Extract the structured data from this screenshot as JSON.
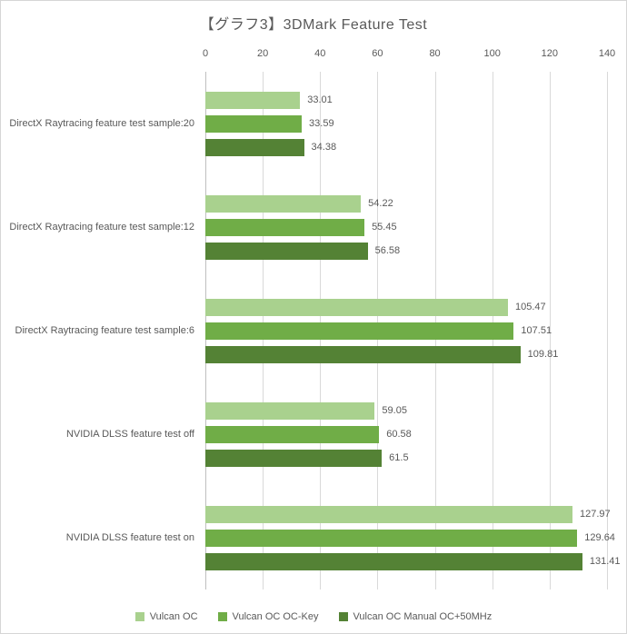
{
  "title": "【グラフ3】3DMark Feature Test",
  "chart_data": {
    "type": "bar",
    "orientation": "horizontal",
    "title": "【グラフ3】3DMark Feature Test",
    "categories": [
      "DirectX Raytracing feature test sample:20",
      "DirectX Raytracing feature test sample:12",
      "DirectX Raytracing feature test sample:6",
      "NVIDIA DLSS feature test off",
      "NVIDIA DLSS feature test on"
    ],
    "series": [
      {
        "name": "Vulcan OC",
        "color": "#a9d18e",
        "values": [
          33.01,
          54.22,
          105.47,
          59.05,
          127.97
        ],
        "labels": [
          "33.01",
          "54.22",
          "105.47",
          "59.05",
          "127.97"
        ]
      },
      {
        "name": "Vulcan OC OC-Key",
        "color": "#70ad47",
        "values": [
          33.59,
          55.45,
          107.51,
          60.58,
          129.64
        ],
        "labels": [
          "33.59",
          "55.45",
          "107.51",
          "60.58",
          "129.64"
        ]
      },
      {
        "name": "Vulcan OC Manual OC+50MHz",
        "color": "#548235",
        "values": [
          34.38,
          56.58,
          109.81,
          61.5,
          131.41
        ],
        "labels": [
          "34.38",
          "56.58",
          "109.81",
          "61.5",
          "131.41"
        ]
      }
    ],
    "x_axis": {
      "min": 0,
      "max": 140,
      "tick_step": 20,
      "ticks": [
        0,
        20,
        40,
        60,
        80,
        100,
        120,
        140
      ]
    },
    "xlim": [
      0,
      140
    ],
    "grid": true,
    "legend_position": "bottom",
    "colors": {
      "text": "#595959",
      "gridline": "#d9d9d9",
      "axis_line": "#bfbfbf",
      "background": "#ffffff",
      "border": "#d6d6d6"
    }
  }
}
